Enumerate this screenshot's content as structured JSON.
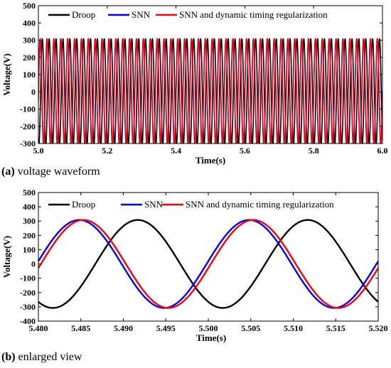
{
  "chart_data": [
    {
      "type": "line",
      "title": "",
      "xlabel": "Time(s)",
      "ylabel": "Voltage(V)",
      "xlim": [
        5.0,
        6.0
      ],
      "ylim": [
        -300,
        500
      ],
      "x_ticks": [
        "5.0",
        "5.2",
        "5.4",
        "5.6",
        "5.8",
        "6.0"
      ],
      "y_ticks": [
        "-300",
        "-200",
        "-100",
        "0",
        "100",
        "200",
        "300",
        "400",
        "500"
      ],
      "legend_position": "top",
      "grid": false,
      "series": [
        {
          "name": "Droop",
          "color": "#000000",
          "amplitude": 308,
          "frequency_hz": 50,
          "zero_crossing_rising": 5.4865,
          "sampled_points": {
            "x": [
              5.0,
              5.25,
              5.5,
              5.75,
              6.0
            ],
            "y": [
              0,
              0,
              0,
              0,
              0
            ]
          }
        },
        {
          "name": "SNN",
          "color": "#0000ff",
          "amplitude": 308,
          "frequency_hz": 50,
          "zero_crossing_rising": 5.48
        },
        {
          "name": "SNN and dynamic timing regularization",
          "color": "#ff0000",
          "amplitude": 308,
          "frequency_hz": 50,
          "zero_crossing_rising": 5.4805
        }
      ]
    },
    {
      "type": "line",
      "title": "",
      "xlabel": "Time(s)",
      "ylabel": "Voltage(V)",
      "xlim": [
        5.48,
        5.52
      ],
      "ylim": [
        -400,
        500
      ],
      "x_ticks": [
        "5.480",
        "5.485",
        "5.490",
        "5.495",
        "5.500",
        "5.505",
        "5.510",
        "5.515",
        "5.520"
      ],
      "y_ticks": [
        "-400",
        "-300",
        "-200",
        "-100",
        "0",
        "100",
        "200",
        "300",
        "400",
        "500"
      ],
      "legend_position": "top",
      "grid": false,
      "series": [
        {
          "name": "Droop",
          "color": "#000000",
          "amplitude": 308,
          "frequency_hz": 50,
          "zero_crossing_rising": 5.4867,
          "key_points": {
            "x": [
              5.48,
              5.4817,
              5.4917,
              5.5017,
              5.5117,
              5.52
            ],
            "y": [
              -270,
              -308,
              308,
              -308,
              308,
              -240
            ]
          }
        },
        {
          "name": "SNN",
          "color": "#0000ff",
          "amplitude": 308,
          "frequency_hz": 50,
          "zero_crossing_rising": 5.4798,
          "key_points": {
            "x": [
              5.48,
              5.4848,
              5.4948,
              5.5048,
              5.5148,
              5.52
            ],
            "y": [
              50,
              308,
              -308,
              308,
              -308,
              45
            ]
          }
        },
        {
          "name": "SNN and dynamic timing regularization",
          "color": "#ff0000",
          "amplitude": 308,
          "frequency_hz": 50,
          "zero_crossing_rising": 5.4803,
          "key_points": {
            "x": [
              5.48,
              5.4853,
              5.4953,
              5.5053,
              5.5153,
              5.52
            ],
            "y": [
              5,
              308,
              -308,
              308,
              -308,
              0
            ]
          }
        }
      ]
    }
  ],
  "captions": [
    {
      "label": "(a)",
      "text": " voltage waveform"
    },
    {
      "label": "(b)",
      "text": " enlarged view"
    }
  ]
}
